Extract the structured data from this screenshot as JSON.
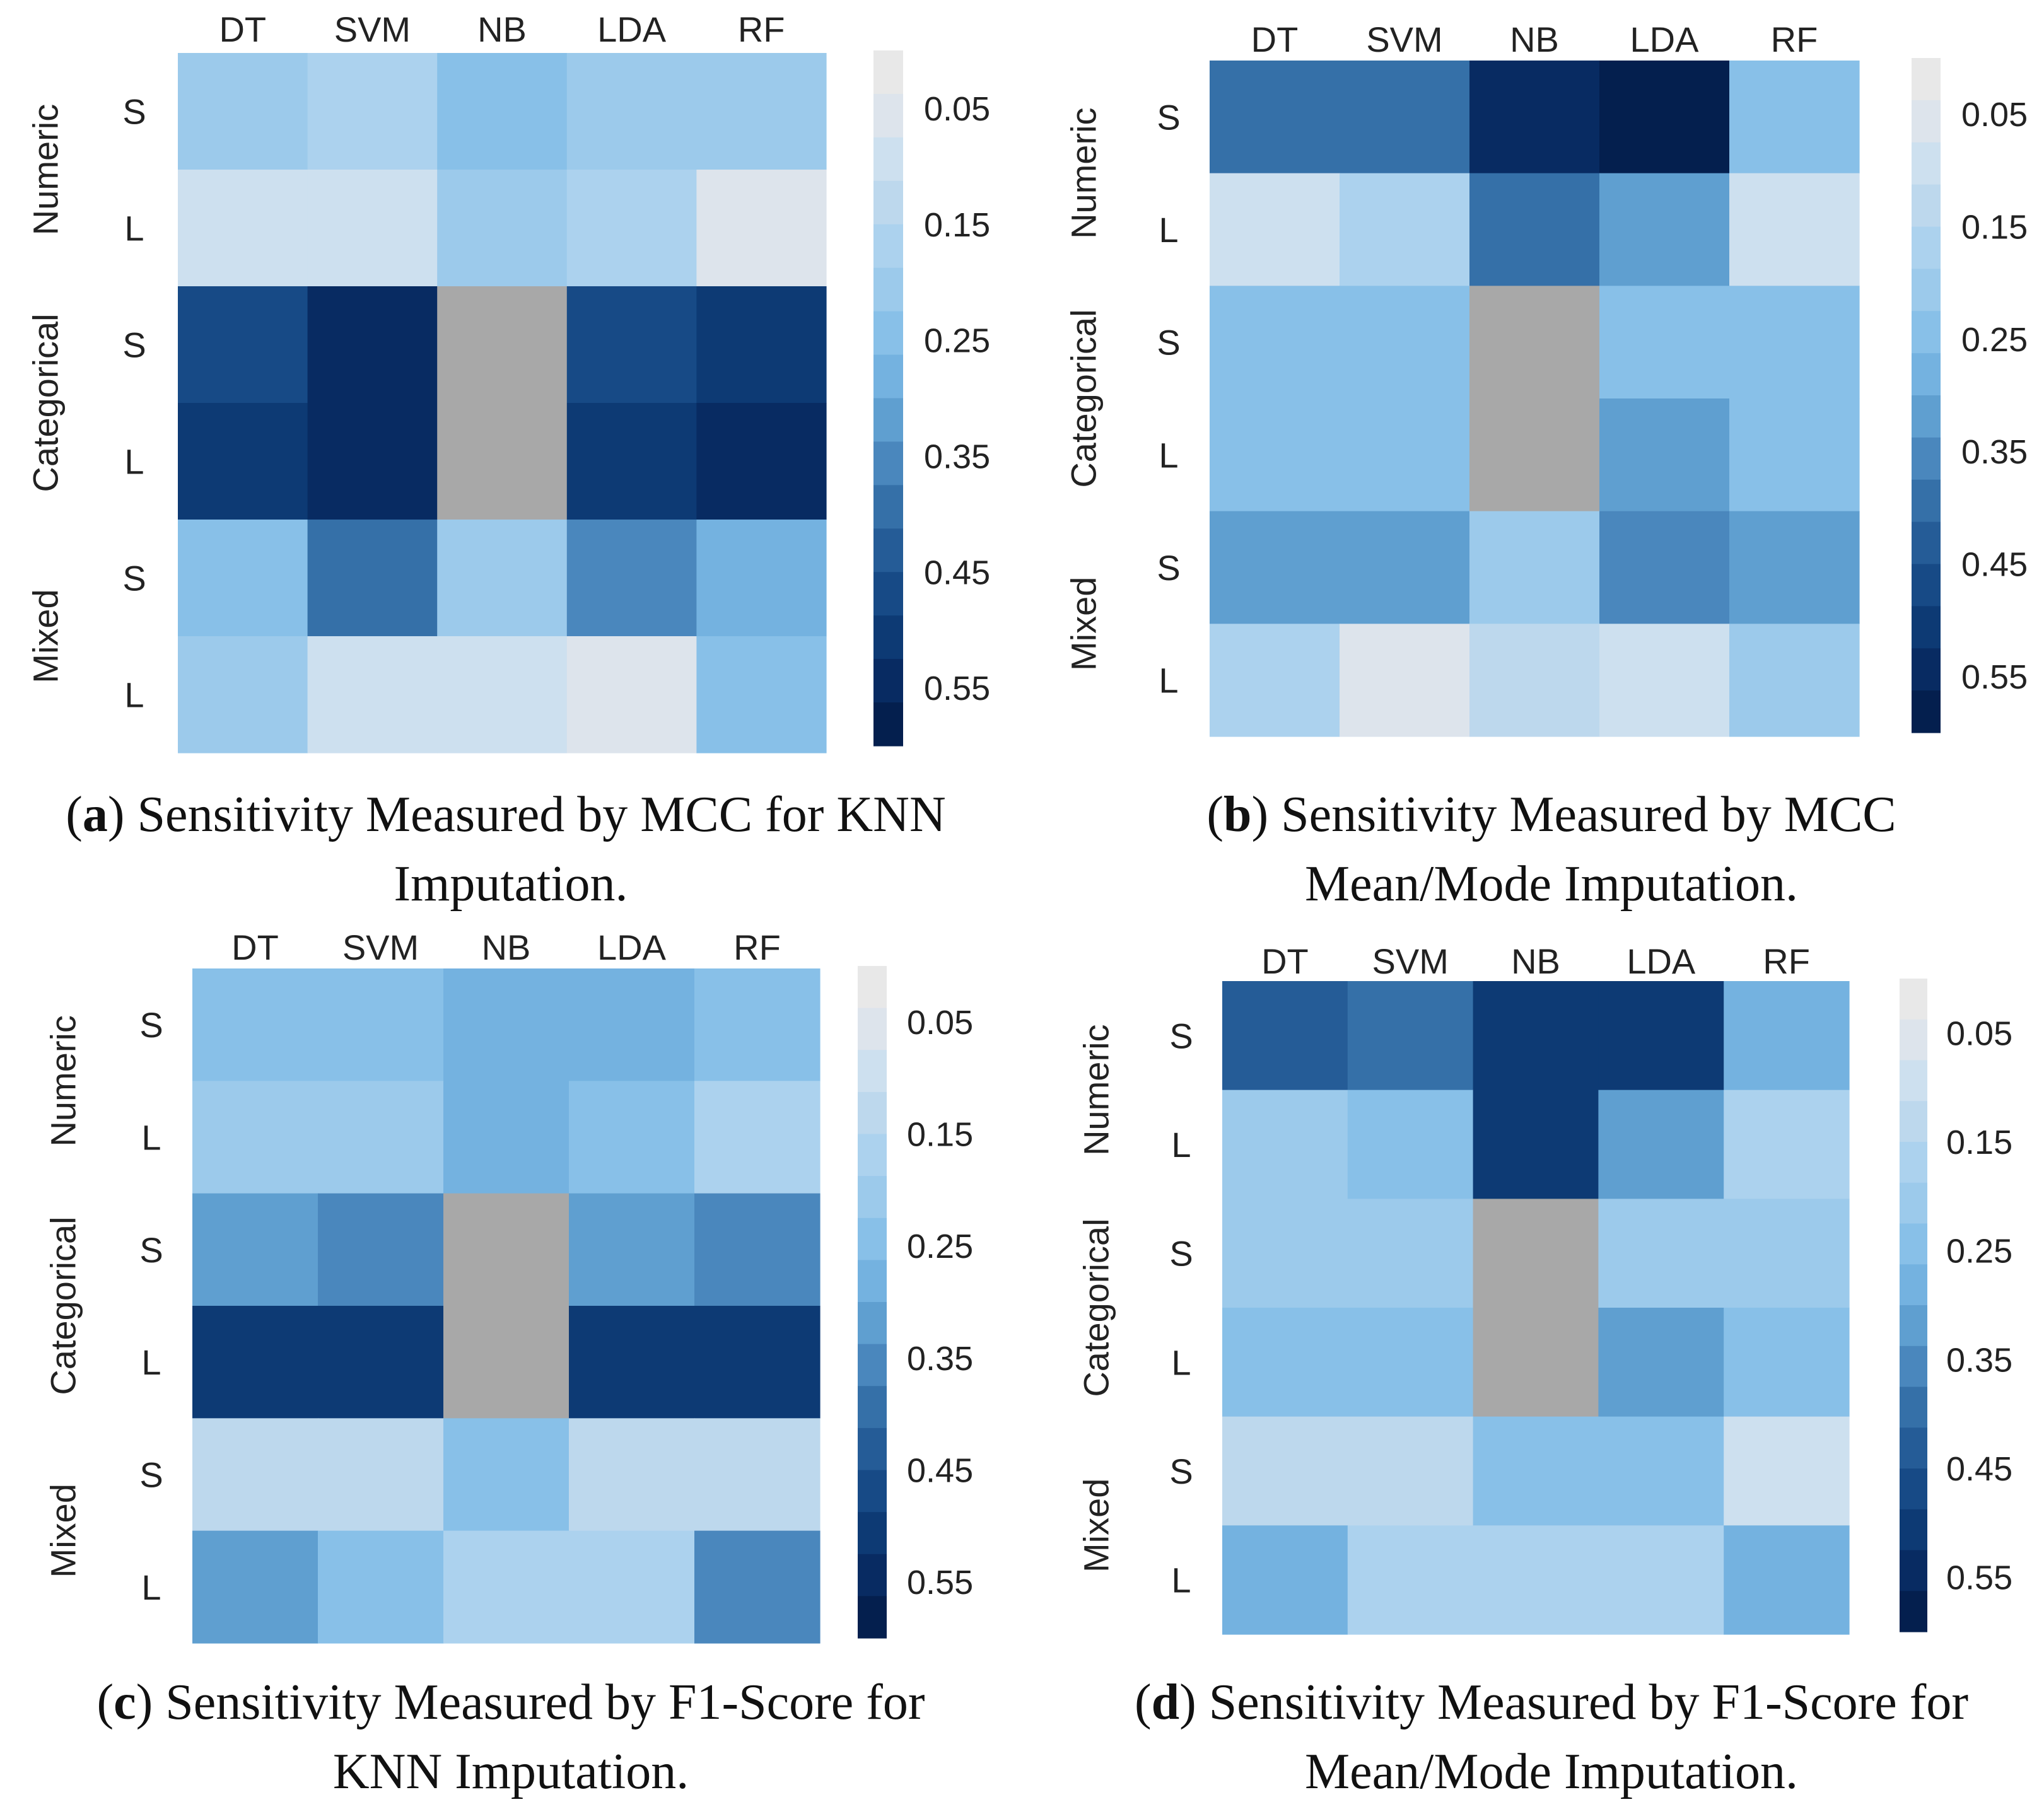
{
  "figure": {
    "panels": [
      {
        "letter": "a",
        "caption_line1": "Sensitivity Measured by MCC for KNN",
        "caption_line2": "Imputation."
      },
      {
        "letter": "b",
        "caption_line1": "Sensitivity Measured by MCC",
        "caption_line2": "Mean/Mode Imputation."
      },
      {
        "letter": "c",
        "caption_line1": "Sensitivity Measured by F1-Score for",
        "caption_line2": "KNN Imputation."
      },
      {
        "letter": "d",
        "caption_line1": "Sensitivity Measured by F1-Score for",
        "caption_line2": "Mean/Mode Imputation."
      }
    ]
  },
  "colors": {
    "missing": "#a8a8a8",
    "scale": [
      "#e8e8e8",
      "#dde4ec",
      "#cde0ef",
      "#bdd8ed",
      "#acd2ee",
      "#9ccaeb",
      "#88c0e8",
      "#74b2e0",
      "#5f9fd0",
      "#4a87bd",
      "#3570a8",
      "#255c97",
      "#174a86",
      "#0d3a74",
      "#082b62",
      "#041f4e"
    ],
    "scale_min": 0,
    "scale_max": 0.6
  },
  "chart_data": [
    {
      "type": "heatmap",
      "id": "a",
      "title": "(a) Sensitivity Measured by MCC for KNN Imputation.",
      "columns": [
        "DT",
        "SVM",
        "NB",
        "LDA",
        "RF"
      ],
      "rows": [
        "S",
        "L",
        "S",
        "L",
        "S",
        "L"
      ],
      "groups": [
        {
          "label": "Numeric",
          "rows": [
            0,
            1
          ]
        },
        {
          "label": "Categorical",
          "rows": [
            2,
            3
          ]
        },
        {
          "label": "Mixed",
          "rows": [
            4,
            5
          ]
        }
      ],
      "values": [
        [
          0.2,
          0.17,
          0.26,
          0.2,
          0.21
        ],
        [
          0.11,
          0.09,
          0.2,
          0.16,
          0.06
        ],
        [
          0.47,
          0.53,
          null,
          0.45,
          0.49
        ],
        [
          0.52,
          0.56,
          null,
          0.51,
          0.53
        ],
        [
          0.24,
          0.4,
          0.22,
          0.34,
          0.28
        ],
        [
          0.19,
          0.1,
          0.08,
          0.06,
          0.23
        ]
      ],
      "colorbar": {
        "ticks": [
          "0.05",
          "0.15",
          "0.25",
          "0.35",
          "0.45",
          "0.55"
        ],
        "range": [
          0,
          0.6
        ]
      }
    },
    {
      "type": "heatmap",
      "id": "b",
      "title": "(b) Sensitivity Measured by MCC Mean/Mode Imputation.",
      "columns": [
        "DT",
        "SVM",
        "NB",
        "LDA",
        "RF"
      ],
      "rows": [
        "S",
        "L",
        "S",
        "L",
        "S",
        "L"
      ],
      "groups": [
        {
          "label": "Numeric",
          "rows": [
            0,
            1
          ]
        },
        {
          "label": "Categorical",
          "rows": [
            2,
            3
          ]
        },
        {
          "label": "Mixed",
          "rows": [
            4,
            5
          ]
        }
      ],
      "values": [
        [
          0.4,
          0.4,
          0.53,
          0.57,
          0.23
        ],
        [
          0.1,
          0.18,
          0.41,
          0.31,
          0.08
        ],
        [
          0.24,
          0.24,
          null,
          0.25,
          0.23
        ],
        [
          0.23,
          0.23,
          null,
          0.3,
          0.26
        ],
        [
          0.3,
          0.3,
          0.21,
          0.36,
          0.33
        ],
        [
          0.16,
          0.06,
          0.12,
          0.09,
          0.21
        ]
      ],
      "colorbar": {
        "ticks": [
          "0.05",
          "0.15",
          "0.25",
          "0.35",
          "0.45",
          "0.55"
        ],
        "range": [
          0,
          0.6
        ]
      }
    },
    {
      "type": "heatmap",
      "id": "c",
      "title": "(c) Sensitivity Measured by F1-Score for KNN Imputation.",
      "columns": [
        "DT",
        "SVM",
        "NB",
        "LDA",
        "RF"
      ],
      "rows": [
        "S",
        "L",
        "S",
        "L",
        "S",
        "L"
      ],
      "groups": [
        {
          "label": "Numeric",
          "rows": [
            0,
            1
          ]
        },
        {
          "label": "Categorical",
          "rows": [
            2,
            3
          ]
        },
        {
          "label": "Mixed",
          "rows": [
            4,
            5
          ]
        }
      ],
      "values": [
        [
          0.25,
          0.24,
          0.29,
          0.27,
          0.26
        ],
        [
          0.2,
          0.19,
          0.29,
          0.26,
          0.15
        ],
        [
          0.33,
          0.37,
          null,
          0.31,
          0.34
        ],
        [
          0.5,
          0.5,
          null,
          0.5,
          0.5
        ],
        [
          0.12,
          0.12,
          0.26,
          0.12,
          0.12
        ],
        [
          0.31,
          0.25,
          0.17,
          0.17,
          0.35
        ]
      ],
      "colorbar": {
        "ticks": [
          "0.05",
          "0.15",
          "0.25",
          "0.35",
          "0.45",
          "0.55"
        ],
        "range": [
          0,
          0.6
        ]
      }
    },
    {
      "type": "heatmap",
      "id": "d",
      "title": "(d) Sensitivity Measured by F1-Score for Mean/Mode Imputation.",
      "columns": [
        "DT",
        "SVM",
        "NB",
        "LDA",
        "RF"
      ],
      "rows": [
        "S",
        "L",
        "S",
        "L",
        "S",
        "L"
      ],
      "groups": [
        {
          "label": "Numeric",
          "rows": [
            0,
            1
          ]
        },
        {
          "label": "Categorical",
          "rows": [
            2,
            3
          ]
        },
        {
          "label": "Mixed",
          "rows": [
            4,
            5
          ]
        }
      ],
      "values": [
        [
          0.44,
          0.41,
          0.51,
          0.51,
          0.27
        ],
        [
          0.21,
          0.24,
          0.5,
          0.33,
          0.17
        ],
        [
          0.2,
          0.2,
          null,
          0.21,
          0.19
        ],
        [
          0.26,
          0.26,
          null,
          0.3,
          0.26
        ],
        [
          0.13,
          0.13,
          0.24,
          0.23,
          0.11
        ],
        [
          0.27,
          0.17,
          0.17,
          0.17,
          0.29
        ]
      ],
      "colorbar": {
        "ticks": [
          "0.05",
          "0.15",
          "0.25",
          "0.35",
          "0.45",
          "0.55"
        ],
        "range": [
          0,
          0.6
        ]
      }
    }
  ]
}
